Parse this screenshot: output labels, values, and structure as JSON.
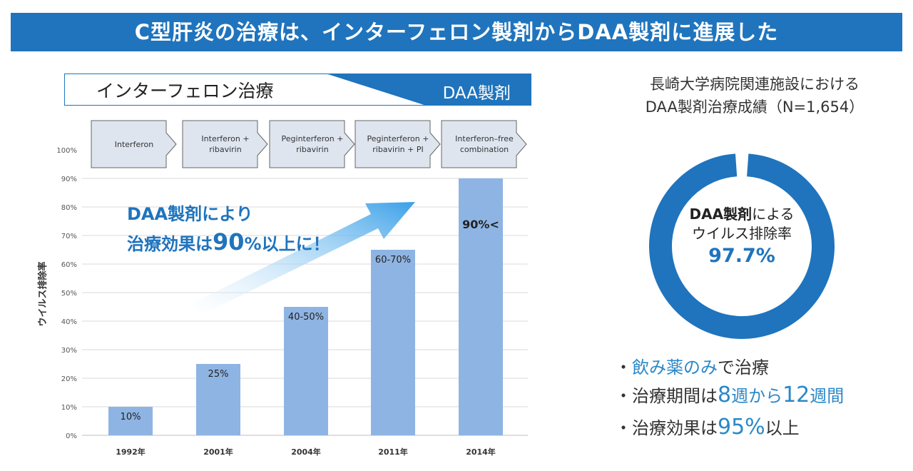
{
  "header": {
    "title": "C型肝炎の治療は、インターフェロン製剤からDAA製剤に進展した"
  },
  "banner": {
    "left": "インターフェロン治療",
    "right": "DAA製剤"
  },
  "steps": [
    "Interferon",
    "Interferon + ribavirin",
    "Peginterferon + ribavirin",
    "Peginterferon + ribavirin + PI",
    "Interferon–free combination"
  ],
  "callout": {
    "line1": "DAA製剤により",
    "line2_a": "治療効果は",
    "line2_b": "90",
    "line2_c": "%以上に！"
  },
  "chart_data": {
    "type": "bar",
    "ylabel": "ウイルス排除率",
    "ylim": [
      0,
      100
    ],
    "yticks": [
      "0%",
      "10%",
      "20%",
      "30%",
      "40%",
      "50%",
      "60%",
      "70%",
      "80%",
      "90%",
      "100%"
    ],
    "categories": [
      "1992年",
      "2001年",
      "2004年",
      "2011年",
      "2014年"
    ],
    "values": [
      10,
      25,
      45,
      65,
      90
    ],
    "labels": [
      "10%",
      "25%",
      "40-50%",
      "60-70%",
      "90%<"
    ],
    "grid": true,
    "bar_color": "#8eb4e3"
  },
  "right": {
    "title_line1": "長崎大学病院関連施設における",
    "title_line2": "DAA製剤治療成績（N=1,654）",
    "donut": {
      "value": 97.7,
      "color": "#1f74bd",
      "label_bold": "DAA製剤",
      "label_rest": "による",
      "label_line2": "ウイルス排除率",
      "value_text": "97.7%"
    },
    "bullets": [
      {
        "a": "・",
        "b": "飲み薬のみ",
        "c": "で治療",
        "d": "",
        "e": ""
      },
      {
        "a": "・",
        "b": "",
        "c": "治療期間は",
        "d": "8",
        "e": "週から"
      },
      {
        "a": "・",
        "b": "",
        "c": "治療効果は",
        "d": "95%",
        "e": "以上"
      }
    ],
    "bullet2_tail_num": "12",
    "bullet2_tail": "週間"
  }
}
